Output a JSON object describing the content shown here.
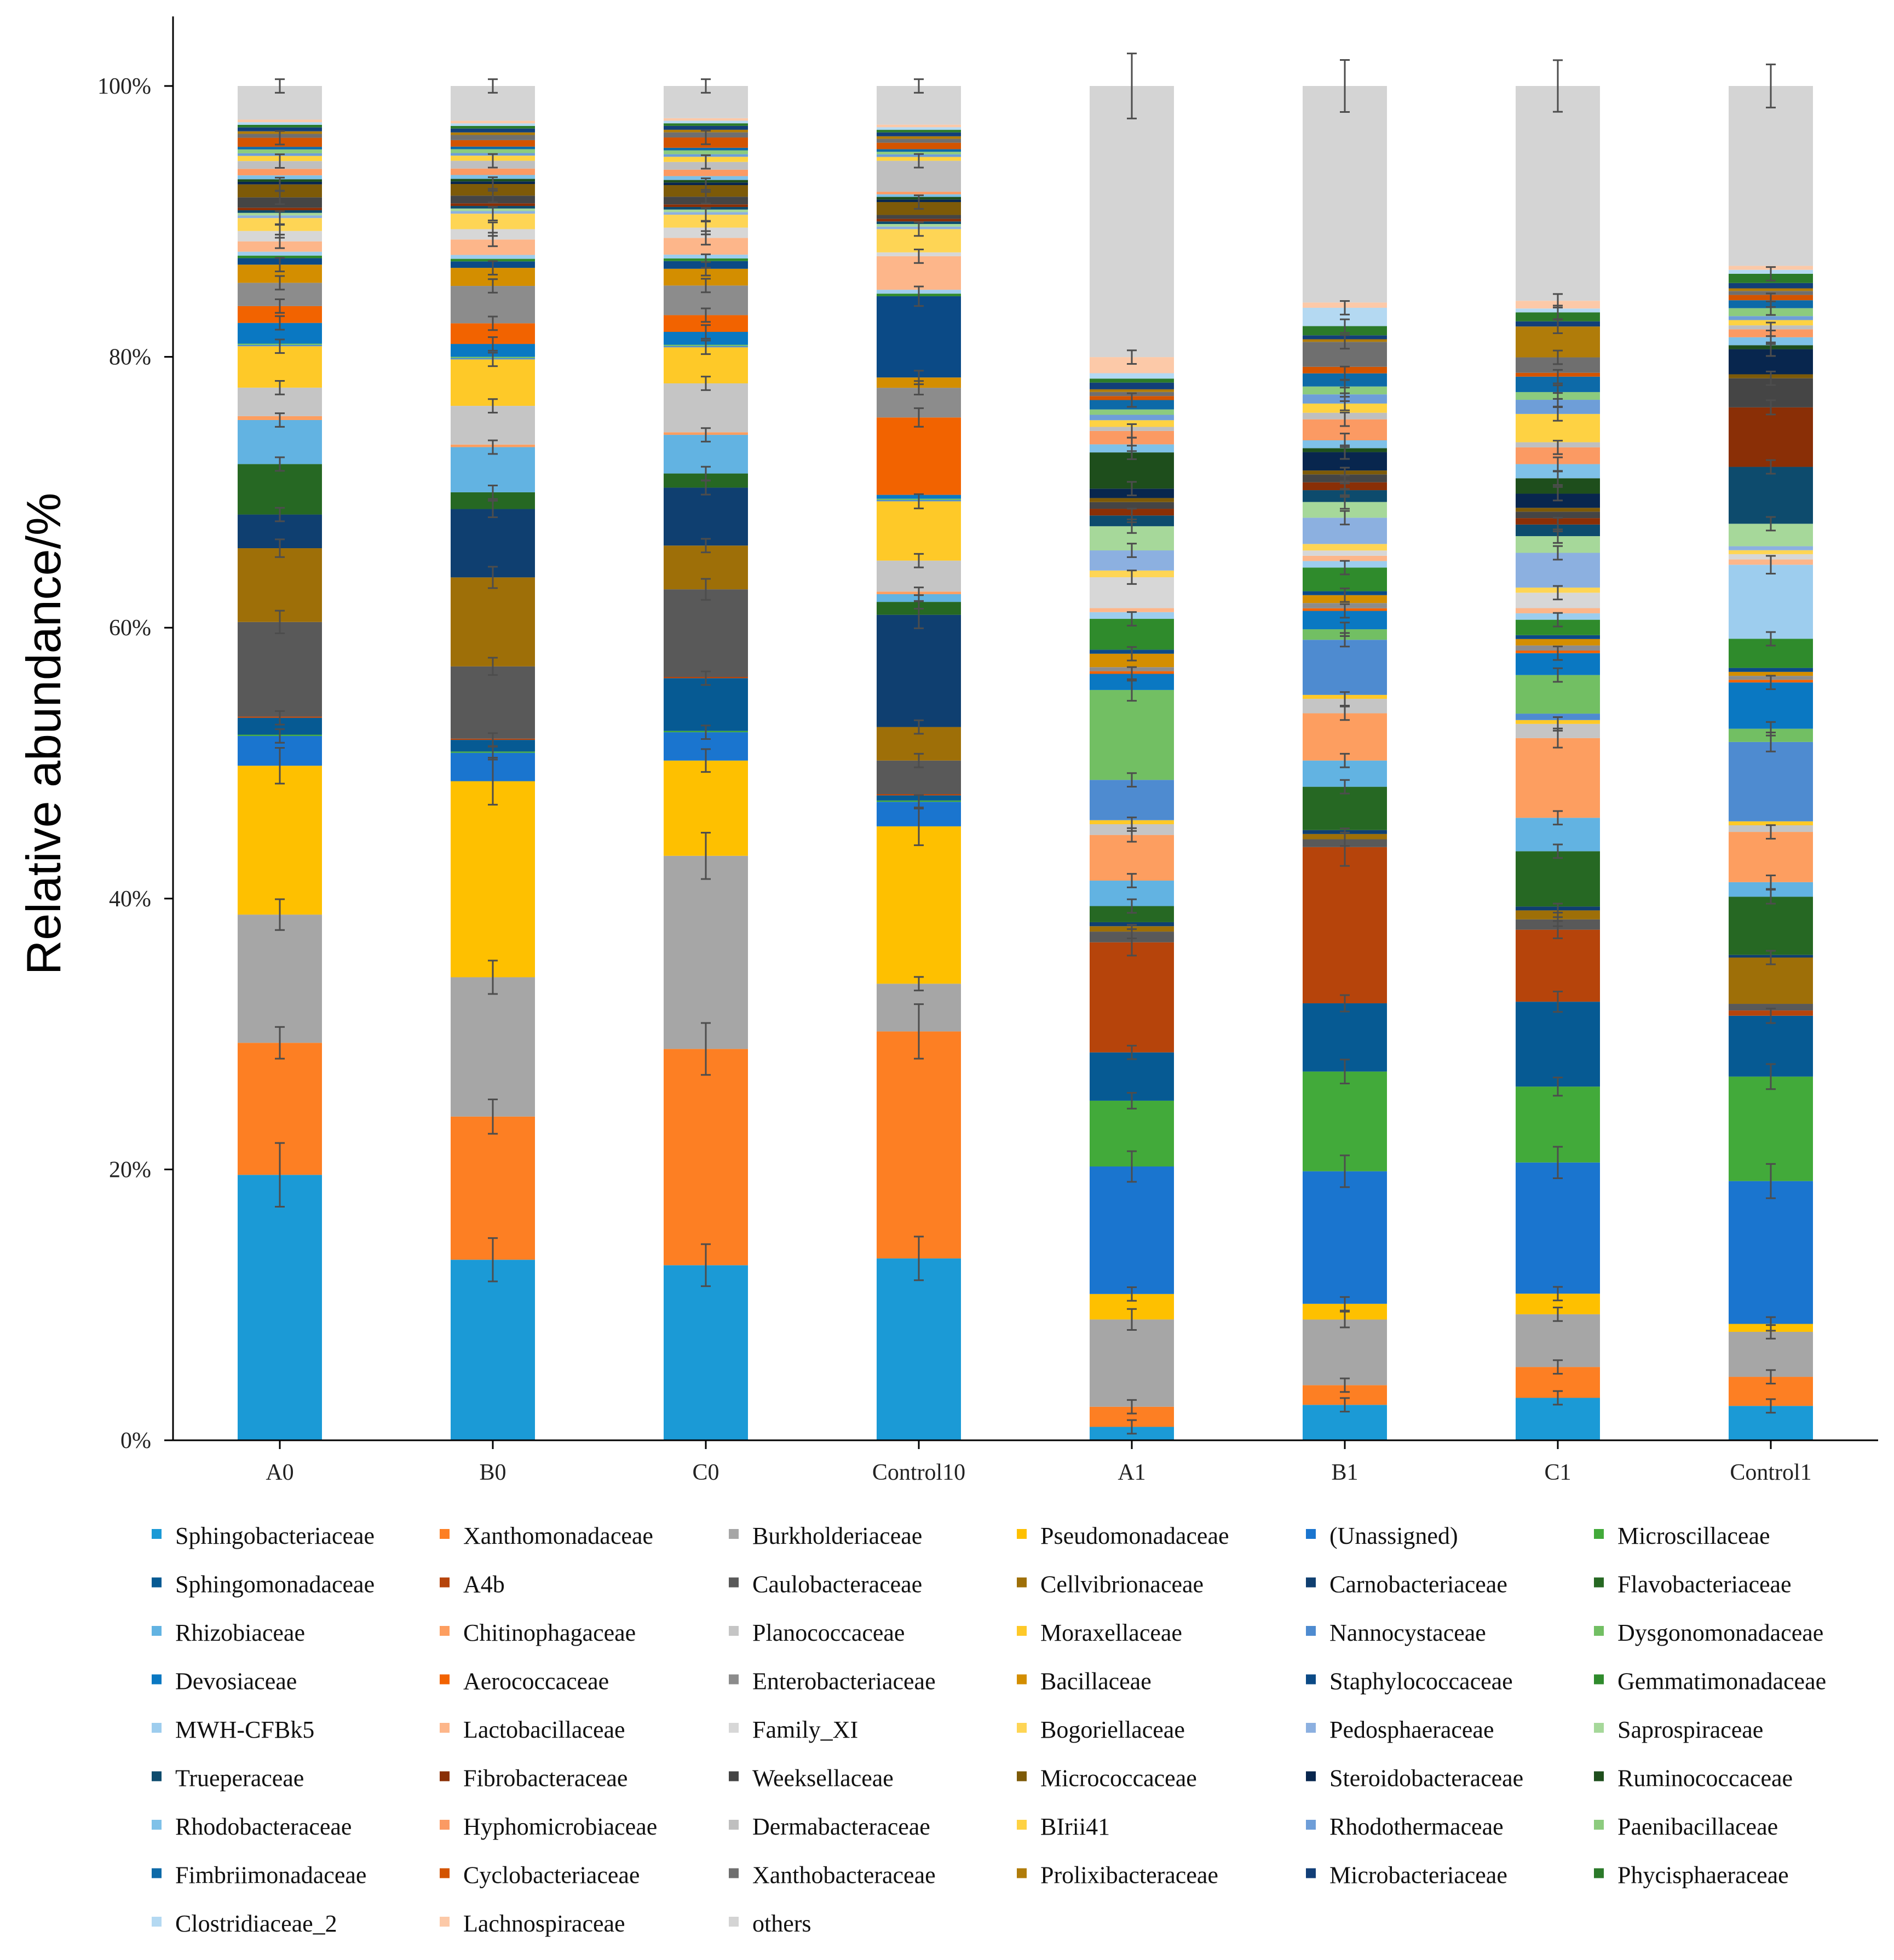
{
  "chart_data": {
    "type": "bar",
    "stacked": true,
    "normalized": true,
    "title": "",
    "xlabel": "",
    "ylabel": "Relative abundance/%",
    "ylim": [
      0,
      100
    ],
    "yticks": [
      "0%",
      "20%",
      "40%",
      "60%",
      "80%",
      "100%"
    ],
    "grid": false,
    "legend_position": "bottom",
    "categories": [
      "A0",
      "B0",
      "C0",
      "Control10",
      "A1",
      "B1",
      "C1",
      "Control1"
    ],
    "series": [
      {
        "name": "Sphingobacteriaceae",
        "color": "#1b9ad6",
        "values": [
          20.5,
          14.0,
          13.6,
          14.1,
          1.0,
          2.7,
          3.3,
          2.6
        ]
      },
      {
        "name": "Xanthomonadaceae",
        "color": "#fd7f23",
        "values": [
          10.2,
          11.1,
          16.8,
          17.6,
          1.5,
          1.5,
          2.4,
          2.2
        ]
      },
      {
        "name": "Burkholderiaceae",
        "color": "#a6a6a6",
        "values": [
          9.9,
          10.8,
          15.0,
          3.7,
          6.5,
          5.0,
          4.1,
          3.4
        ]
      },
      {
        "name": "Pseudomonadaceae",
        "color": "#fec000",
        "values": [
          11.5,
          15.2,
          7.4,
          12.2,
          1.9,
          1.2,
          1.6,
          0.6
        ]
      },
      {
        "name": "(Unassigned)",
        "color": "#1a75cf",
        "values": [
          2.3,
          2.2,
          2.2,
          1.9,
          9.5,
          10.1,
          10.2,
          10.8
        ]
      },
      {
        "name": "Microscillaceae",
        "color": "#42aa3a",
        "values": [
          0.1,
          0.1,
          0.1,
          0.1,
          4.9,
          7.6,
          5.9,
          7.9
        ]
      },
      {
        "name": "Sphingomonadaceae",
        "color": "#065a93",
        "values": [
          1.3,
          0.9,
          4.1,
          0.4,
          3.6,
          5.2,
          6.6,
          4.6
        ]
      },
      {
        "name": "A4b",
        "color": "#b6440b",
        "values": [
          0.1,
          0.1,
          0.1,
          0.1,
          8.2,
          11.9,
          5.6,
          0.4
        ]
      },
      {
        "name": "Caulobacteraceae",
        "color": "#595959",
        "values": [
          7.3,
          5.6,
          6.8,
          2.6,
          0.8,
          0.6,
          0.8,
          0.5
        ]
      },
      {
        "name": "Cellvibrionaceae",
        "color": "#9e6f08",
        "values": [
          5.7,
          6.9,
          3.4,
          2.6,
          0.4,
          0.4,
          0.7,
          3.5
        ]
      },
      {
        "name": "Carnobacteriaceae",
        "color": "#0f3f70",
        "values": [
          2.6,
          5.3,
          4.5,
          8.7,
          0.3,
          0.3,
          0.3,
          0.2
        ]
      },
      {
        "name": "Flavobacteriaceae",
        "color": "#266823",
        "values": [
          3.9,
          1.3,
          1.1,
          1.0,
          1.2,
          3.3,
          4.3,
          4.4
        ]
      },
      {
        "name": "Rhizobiaceae",
        "color": "#62b3e2",
        "values": [
          3.4,
          3.5,
          3.0,
          0.6,
          1.9,
          2.0,
          2.6,
          1.1
        ]
      },
      {
        "name": "Chitinophagaceae",
        "color": "#fd9e60",
        "values": [
          0.3,
          0.2,
          0.2,
          0.2,
          3.4,
          3.6,
          6.2,
          3.8
        ]
      },
      {
        "name": "Planococcaceae",
        "color": "#c5c5c5",
        "values": [
          2.2,
          3.0,
          3.8,
          2.4,
          0.8,
          1.1,
          1.1,
          0.5
        ]
      },
      {
        "name": "Moraxellaceae",
        "color": "#fec928",
        "values": [
          3.2,
          3.6,
          2.8,
          4.6,
          0.3,
          0.3,
          0.3,
          0.3
        ]
      },
      {
        "name": "Nannocystaceae",
        "color": "#4e8bd0",
        "values": [
          0.1,
          0.1,
          0.1,
          0.1,
          3.0,
          4.2,
          0.5,
          6.0
        ]
      },
      {
        "name": "Dysgonomonadaceae",
        "color": "#72bf63",
        "values": [
          0.1,
          0.1,
          0.1,
          0.1,
          6.7,
          0.8,
          3.0,
          1.0
        ]
      },
      {
        "name": "Devosiaceae",
        "color": "#0a78c2",
        "values": [
          1.6,
          1.0,
          1.0,
          0.3,
          1.2,
          1.4,
          1.7,
          3.5
        ]
      },
      {
        "name": "Aerococcaceae",
        "color": "#f26300",
        "values": [
          1.3,
          1.6,
          1.3,
          6.0,
          0.2,
          0.2,
          0.2,
          0.2
        ]
      },
      {
        "name": "Enterobacteriaceae",
        "color": "#8c8c8c",
        "values": [
          1.8,
          2.9,
          2.3,
          2.3,
          0.3,
          0.4,
          0.4,
          0.3
        ]
      },
      {
        "name": "Bacillaceae",
        "color": "#d38e00",
        "values": [
          1.4,
          1.4,
          1.3,
          0.8,
          1.0,
          0.6,
          0.5,
          0.3
        ]
      },
      {
        "name": "Staphylococcaceae",
        "color": "#0b4a86",
        "values": [
          0.5,
          0.5,
          0.6,
          6.3,
          0.3,
          0.3,
          0.3,
          0.3
        ]
      },
      {
        "name": "Gemmatimonadaceae",
        "color": "#2f8b2c",
        "values": [
          0.2,
          0.2,
          0.2,
          0.2,
          2.3,
          1.8,
          1.2,
          2.2
        ]
      },
      {
        "name": "MWH-CFBk5",
        "color": "#9dcdee",
        "values": [
          0.3,
          0.3,
          0.3,
          0.3,
          0.5,
          0.5,
          0.5,
          5.6
        ]
      },
      {
        "name": "Lactobacillaceae",
        "color": "#fdb68a",
        "values": [
          0.8,
          1.2,
          1.3,
          2.6,
          0.3,
          0.4,
          0.4,
          0.4
        ]
      },
      {
        "name": "Family_XI",
        "color": "#d7d7d7",
        "values": [
          0.8,
          0.8,
          0.8,
          0.3,
          2.3,
          0.4,
          1.2,
          0.4
        ]
      },
      {
        "name": "Bogoriellaceae",
        "color": "#fed555",
        "values": [
          1.0,
          1.2,
          1.0,
          1.8,
          0.5,
          0.5,
          0.4,
          0.3
        ]
      },
      {
        "name": "Pedosphaeraceae",
        "color": "#8cb0e0",
        "values": [
          0.2,
          0.2,
          0.2,
          0.2,
          1.5,
          2.0,
          2.7,
          0.3
        ]
      },
      {
        "name": "Saprospiraceae",
        "color": "#a6d89a",
        "values": [
          0.2,
          0.2,
          0.2,
          0.2,
          1.8,
          1.2,
          1.3,
          1.7
        ]
      },
      {
        "name": "Trueperaceae",
        "color": "#0d4b6d",
        "values": [
          0.2,
          0.2,
          0.2,
          0.2,
          0.8,
          0.9,
          0.9,
          4.3
        ]
      },
      {
        "name": "Fibrobacteraceae",
        "color": "#8a2f06",
        "values": [
          0.2,
          0.2,
          0.2,
          0.2,
          0.5,
          0.6,
          0.5,
          4.5
        ]
      },
      {
        "name": "Weeksellaceae",
        "color": "#454545",
        "values": [
          0.8,
          0.6,
          0.6,
          0.3,
          0.5,
          0.6,
          0.5,
          2.2
        ]
      },
      {
        "name": "Micrococcaceae",
        "color": "#7d5a08",
        "values": [
          1.0,
          0.9,
          0.9,
          1.0,
          0.3,
          0.3,
          0.3,
          0.3
        ]
      },
      {
        "name": "Steroidobacteraceae",
        "color": "#08264e",
        "values": [
          0.2,
          0.2,
          0.2,
          0.2,
          0.7,
          1.4,
          1.1,
          1.9
        ]
      },
      {
        "name": "Ruminococcaceae",
        "color": "#1e4e1c",
        "values": [
          0.2,
          0.2,
          0.2,
          0.2,
          2.7,
          0.3,
          1.2,
          0.3
        ]
      },
      {
        "name": "Rhodobacteraceae",
        "color": "#7fc1e8",
        "values": [
          0.3,
          0.3,
          0.3,
          0.2,
          0.6,
          0.6,
          1.1,
          0.6
        ]
      },
      {
        "name": "Hyphomicrobiaceae",
        "color": "#fb9a63",
        "values": [
          0.5,
          0.5,
          0.5,
          0.2,
          1.0,
          1.6,
          1.3,
          0.6
        ]
      },
      {
        "name": "Dermabacteraceae",
        "color": "#bfbfbf",
        "values": [
          0.6,
          0.6,
          0.6,
          2.4,
          0.3,
          0.5,
          0.4,
          0.3
        ]
      },
      {
        "name": "BIrii41",
        "color": "#fed243",
        "values": [
          0.4,
          0.4,
          0.4,
          0.3,
          0.5,
          0.7,
          2.2,
          0.4
        ]
      },
      {
        "name": "Rhodothermaceae",
        "color": "#6e9ed8",
        "values": [
          0.2,
          0.2,
          0.2,
          0.2,
          0.4,
          0.7,
          1.1,
          0.3
        ]
      },
      {
        "name": "Paenibacillaceae",
        "color": "#8ccb7e",
        "values": [
          0.3,
          0.3,
          0.3,
          0.2,
          0.4,
          0.6,
          0.6,
          0.6
        ]
      },
      {
        "name": "Fimbriimonadaceae",
        "color": "#0d6aa8",
        "values": [
          0.2,
          0.2,
          0.2,
          0.2,
          0.7,
          1.0,
          1.2,
          0.6
        ]
      },
      {
        "name": "Cyclobacteriaceae",
        "color": "#d35400",
        "values": [
          0.7,
          0.5,
          0.8,
          0.5,
          0.3,
          0.5,
          0.3,
          0.4
        ]
      },
      {
        "name": "Xanthobacteraceae",
        "color": "#6f6f6f",
        "values": [
          0.3,
          0.4,
          0.4,
          0.3,
          0.3,
          1.9,
          1.2,
          0.3
        ]
      },
      {
        "name": "Prolixibacteraceae",
        "color": "#b07c0a",
        "values": [
          0.2,
          0.2,
          0.2,
          0.2,
          0.2,
          0.2,
          2.4,
          0.2
        ]
      },
      {
        "name": "Microbacteriaceae",
        "color": "#123f78",
        "values": [
          0.3,
          0.3,
          0.3,
          0.3,
          0.5,
          0.3,
          0.4,
          0.4
        ]
      },
      {
        "name": "Phycisphaeraceae",
        "color": "#2b7a2a",
        "values": [
          0.2,
          0.2,
          0.2,
          0.2,
          0.3,
          0.7,
          0.7,
          0.7
        ]
      },
      {
        "name": "Clostridiaceae_2",
        "color": "#b4d9f2",
        "values": [
          0.2,
          0.2,
          0.2,
          0.2,
          0.4,
          1.4,
          0.3,
          0.3
        ]
      },
      {
        "name": "Lachnospiraceae",
        "color": "#fcc9a8",
        "values": [
          0.2,
          0.2,
          0.2,
          0.2,
          1.2,
          0.4,
          0.6,
          0.3
        ]
      },
      {
        "name": "others",
        "color": "#d4d4d4",
        "values": [
          2.6,
          2.7,
          2.5,
          3.0,
          20.2,
          16.5,
          16.7,
          13.6
        ]
      }
    ]
  }
}
